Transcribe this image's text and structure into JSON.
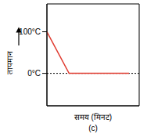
{
  "chart_data": {
    "type": "line",
    "x_label": "समय (मिनट)",
    "y_label": "तापमान",
    "caption": "(c)",
    "x": [
      0,
      2.4,
      8.9
    ],
    "values": [
      100,
      0,
      0
    ],
    "color": "#e03c31",
    "xlim": [
      0,
      10
    ],
    "ylim": [
      -78,
      167
    ],
    "yticks": [
      {
        "value": 0,
        "label": "0°C"
      },
      {
        "value": 100,
        "label": "100°C"
      }
    ],
    "reference_line": 0,
    "grid": false,
    "tick_labels": "y"
  }
}
